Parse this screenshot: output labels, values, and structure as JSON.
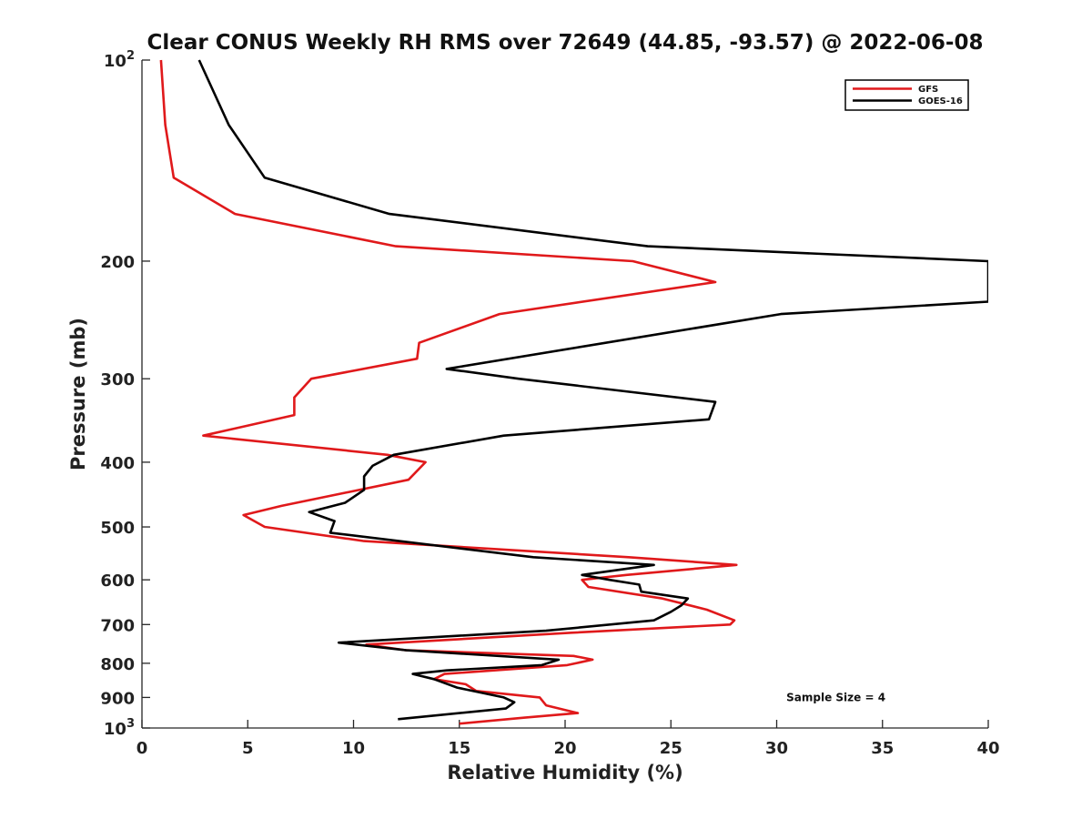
{
  "chart_data": {
    "type": "line",
    "title": "Clear CONUS Weekly RH RMS over 72649 (44.85, -93.57) @ 2022-06-08",
    "xlabel": "Relative Humidity (%)",
    "ylabel": "Pressure (mb)",
    "xlim": [
      0,
      40
    ],
    "ylim": [
      100,
      1000
    ],
    "y_scale": "log",
    "y_inverted": true,
    "grid": false,
    "legend_position": "top-right",
    "x_ticks": [
      0,
      5,
      10,
      15,
      20,
      25,
      30,
      35,
      40
    ],
    "y_ticks": [
      {
        "value": 100,
        "base": "10",
        "exp": "2"
      },
      {
        "value": 200,
        "label": "200"
      },
      {
        "value": 300,
        "label": "300"
      },
      {
        "value": 400,
        "label": "400"
      },
      {
        "value": 500,
        "label": "500"
      },
      {
        "value": 600,
        "label": "600"
      },
      {
        "value": 700,
        "label": "700"
      },
      {
        "value": 800,
        "label": "800"
      },
      {
        "value": 900,
        "label": "900"
      },
      {
        "value": 1000,
        "base": "10",
        "exp": "3"
      }
    ],
    "series": [
      {
        "name": "GFS",
        "color": "#e0191b",
        "points": [
          [
            0.9,
            100
          ],
          [
            1.1,
            125
          ],
          [
            1.5,
            150
          ],
          [
            4.4,
            170
          ],
          [
            12.0,
            190
          ],
          [
            23.2,
            200
          ],
          [
            27.1,
            215
          ],
          [
            16.9,
            240
          ],
          [
            13.1,
            265
          ],
          [
            13.0,
            280
          ],
          [
            8.0,
            300
          ],
          [
            7.2,
            320
          ],
          [
            7.2,
            340
          ],
          [
            2.9,
            365
          ],
          [
            11.6,
            390
          ],
          [
            13.4,
            400
          ],
          [
            12.6,
            425
          ],
          [
            6.6,
            465
          ],
          [
            4.8,
            480
          ],
          [
            5.8,
            500
          ],
          [
            10.5,
            525
          ],
          [
            23.0,
            555
          ],
          [
            28.1,
            570
          ],
          [
            22.9,
            590
          ],
          [
            20.8,
            600
          ],
          [
            21.1,
            615
          ],
          [
            24.6,
            640
          ],
          [
            26.7,
            665
          ],
          [
            28.0,
            690
          ],
          [
            27.8,
            700
          ],
          [
            20.3,
            720
          ],
          [
            10.6,
            750
          ],
          [
            12.5,
            765
          ],
          [
            20.4,
            780
          ],
          [
            21.3,
            790
          ],
          [
            20.1,
            805
          ],
          [
            14.3,
            830
          ],
          [
            13.8,
            845
          ],
          [
            15.3,
            860
          ],
          [
            15.8,
            880
          ],
          [
            18.8,
            900
          ],
          [
            19.1,
            925
          ],
          [
            20.6,
            950
          ],
          [
            18.1,
            965
          ],
          [
            15.0,
            985
          ]
        ]
      },
      {
        "name": "GOES-16",
        "color": "#000000",
        "points": [
          [
            2.7,
            100
          ],
          [
            4.1,
            125
          ],
          [
            5.8,
            150
          ],
          [
            11.7,
            170
          ],
          [
            23.9,
            190
          ],
          [
            40.0,
            200
          ],
          [
            40.0,
            230
          ],
          [
            30.2,
            240
          ],
          [
            14.4,
            290
          ],
          [
            17.8,
            300
          ],
          [
            27.1,
            325
          ],
          [
            26.8,
            345
          ],
          [
            17.1,
            365
          ],
          [
            11.9,
            390
          ],
          [
            10.9,
            405
          ],
          [
            10.5,
            420
          ],
          [
            10.5,
            440
          ],
          [
            9.6,
            460
          ],
          [
            7.9,
            475
          ],
          [
            9.1,
            490
          ],
          [
            8.9,
            510
          ],
          [
            18.5,
            555
          ],
          [
            24.2,
            570
          ],
          [
            20.8,
            590
          ],
          [
            22.1,
            600
          ],
          [
            23.5,
            610
          ],
          [
            23.6,
            625
          ],
          [
            25.8,
            640
          ],
          [
            25.5,
            655
          ],
          [
            25.0,
            670
          ],
          [
            24.2,
            690
          ],
          [
            19.1,
            715
          ],
          [
            9.3,
            745
          ],
          [
            12.5,
            765
          ],
          [
            19.7,
            790
          ],
          [
            18.9,
            805
          ],
          [
            14.4,
            820
          ],
          [
            12.8,
            830
          ],
          [
            13.8,
            845
          ],
          [
            14.9,
            870
          ],
          [
            17.1,
            900
          ],
          [
            17.6,
            915
          ],
          [
            17.2,
            935
          ],
          [
            12.1,
            970
          ]
        ]
      }
    ],
    "annotations": [
      {
        "text": "Sample Size = 4",
        "x": 32.8,
        "y": 900
      }
    ]
  }
}
